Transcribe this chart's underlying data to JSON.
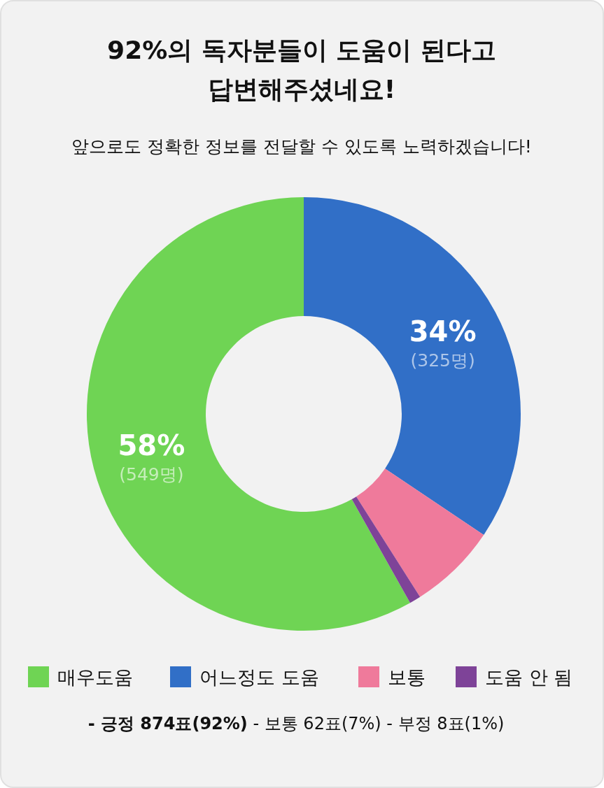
{
  "chart_data": {
    "type": "donut",
    "title": "**92%**의 독자분들이 도움이 된다고 답변해주셨네요!",
    "subtitle": "앞으로도 정확한 정보를 전달할 수 있도록 노력하겠습니다!",
    "categories": [
      "매우도움",
      "어느정도 도움",
      "보통",
      "도움 안 됨"
    ],
    "values": [
      549,
      325,
      62,
      8
    ],
    "colors": [
      "#6fd454",
      "#316fc7",
      "#ef7a9b",
      "#7e4398"
    ],
    "value_labels": [
      "58% (549명)",
      "34% (325명)",
      null,
      null
    ],
    "legend": "bottom",
    "annotations": [
      "**- 긍정 874표(92%)** - 보통 62표(7%) - 부정 8표(1%)"
    ]
  }
}
